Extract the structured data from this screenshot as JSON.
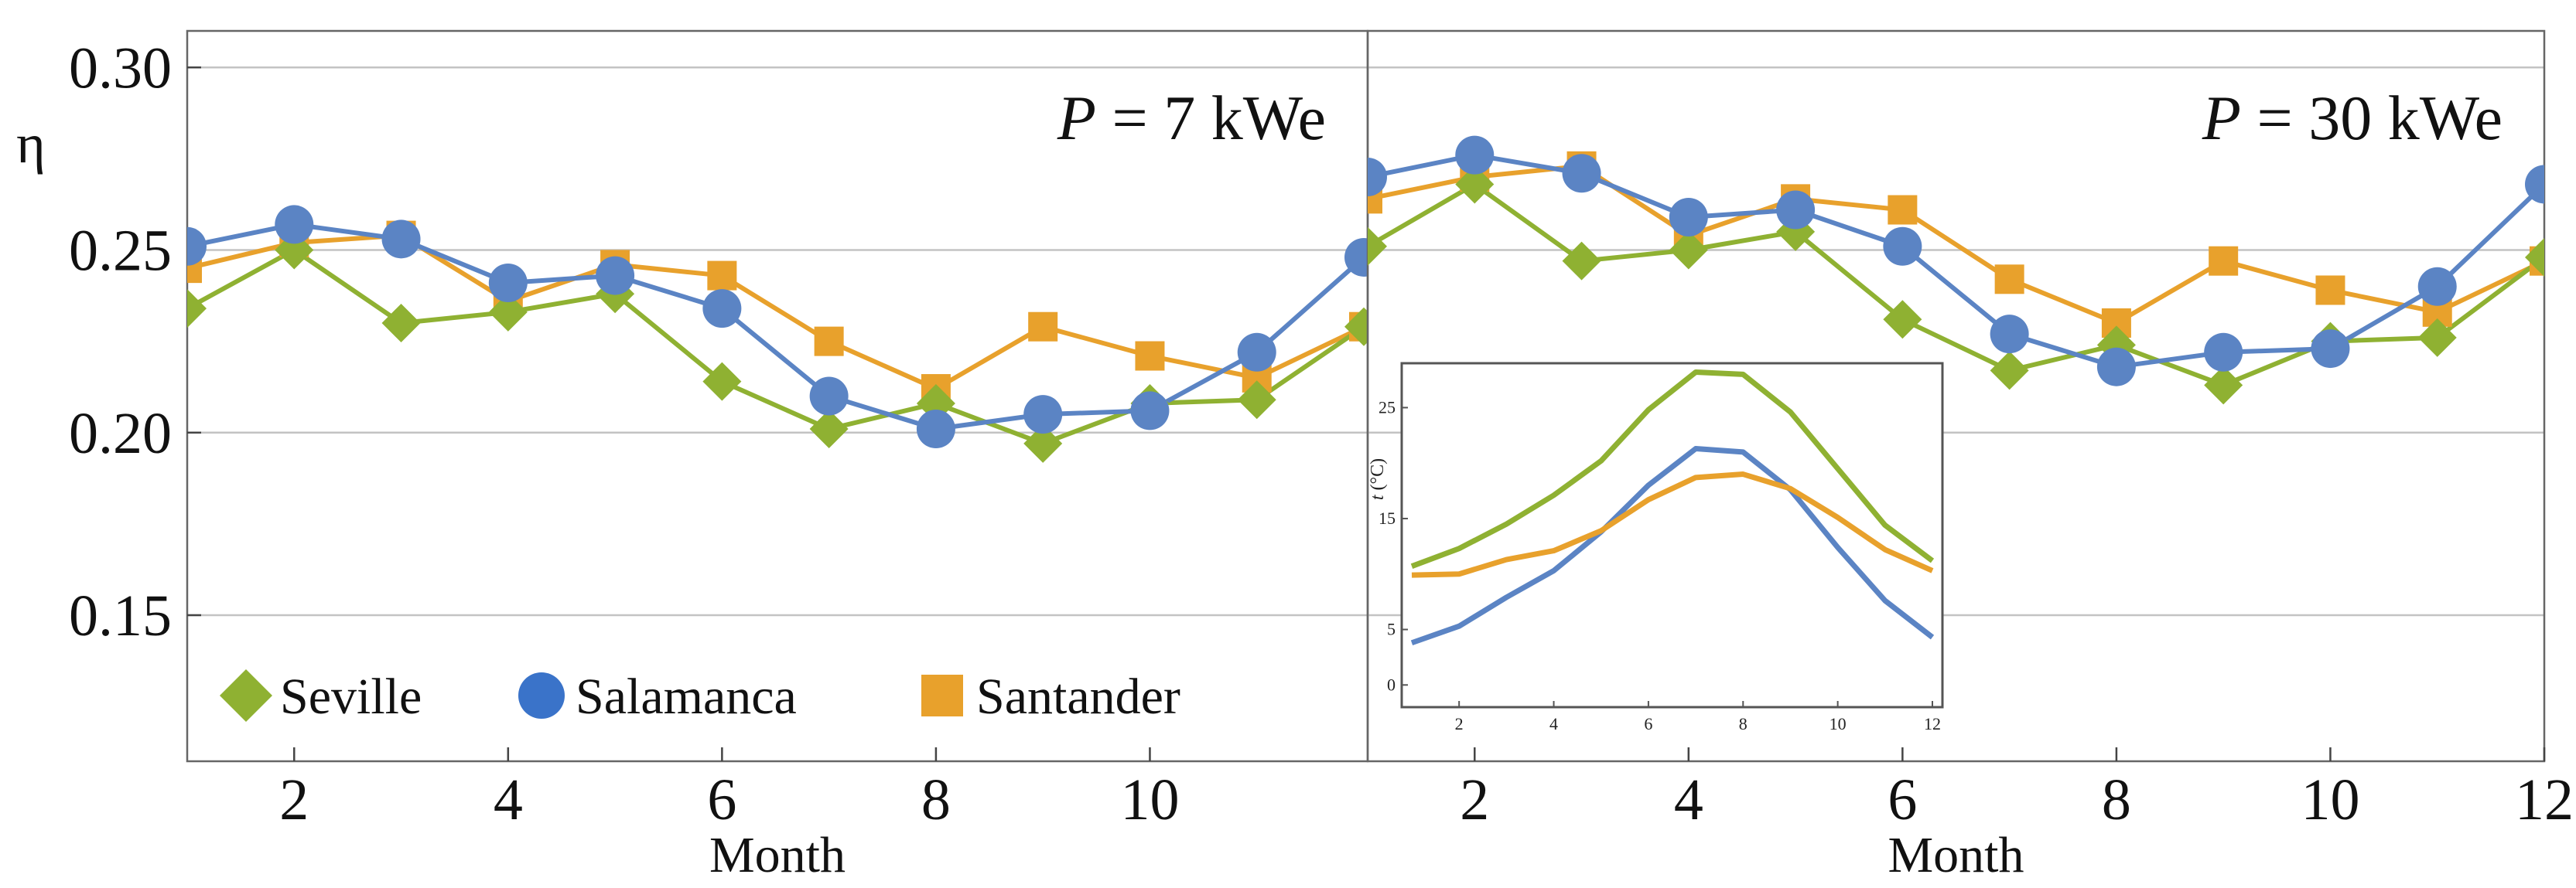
{
  "chart_data": [
    {
      "type": "line",
      "panel": "left",
      "annotation": {
        "italic": "P",
        "text": " = 7 kWe"
      },
      "ylabel": "η",
      "xlabel": "Month",
      "xlim": [
        1,
        12
      ],
      "ylim": [
        0.11,
        0.31
      ],
      "grid": "horizontal",
      "x_ticks": [
        2,
        4,
        6,
        8,
        10
      ],
      "y_ticks": [
        0.15,
        0.2,
        0.25,
        0.3
      ],
      "y_tick_labels": [
        "0.15",
        "0.20",
        "0.25",
        "0.30"
      ],
      "x": [
        1,
        2,
        3,
        4,
        5,
        6,
        7,
        8,
        9,
        10,
        11,
        12
      ],
      "series": [
        {
          "name": "Seville",
          "color": "#8fb132",
          "marker": "diamond",
          "values": [
            0.234,
            0.25,
            0.23,
            0.233,
            0.238,
            0.214,
            0.201,
            0.208,
            0.197,
            0.208,
            0.209,
            0.229
          ]
        },
        {
          "name": "Salamanca",
          "color": "#5b84c4",
          "marker": "circle",
          "values": [
            0.251,
            0.257,
            0.253,
            0.241,
            0.243,
            0.234,
            0.21,
            0.201,
            0.205,
            0.206,
            0.222,
            0.248
          ]
        },
        {
          "name": "Santander",
          "color": "#e8a12c",
          "marker": "square",
          "values": [
            0.245,
            0.252,
            0.254,
            0.236,
            0.246,
            0.243,
            0.225,
            0.212,
            0.229,
            0.221,
            0.215,
            0.229
          ]
        }
      ]
    },
    {
      "type": "line",
      "panel": "right",
      "annotation": {
        "italic": "P",
        "text": " = 30 kWe"
      },
      "xlabel": "Month",
      "xlim": [
        1,
        12
      ],
      "ylim": [
        0.11,
        0.31
      ],
      "grid": "horizontal",
      "x_ticks": [
        2,
        4,
        6,
        8,
        10,
        12
      ],
      "x": [
        1,
        2,
        3,
        4,
        5,
        6,
        7,
        8,
        9,
        10,
        11,
        12
      ],
      "series": [
        {
          "name": "Seville",
          "color": "#8fb132",
          "marker": "diamond",
          "values": [
            0.251,
            0.268,
            0.247,
            0.25,
            0.255,
            0.231,
            0.217,
            0.224,
            0.213,
            0.225,
            0.226,
            0.248
          ]
        },
        {
          "name": "Salamanca",
          "color": "#5b84c4",
          "marker": "circle",
          "values": [
            0.27,
            0.276,
            0.271,
            0.259,
            0.261,
            0.251,
            0.227,
            0.218,
            0.222,
            0.223,
            0.24,
            0.268
          ]
        },
        {
          "name": "Santander",
          "color": "#e8a12c",
          "marker": "square",
          "values": [
            0.264,
            0.27,
            0.273,
            0.254,
            0.264,
            0.261,
            0.242,
            0.23,
            0.247,
            0.239,
            0.233,
            0.247
          ]
        }
      ]
    },
    {
      "type": "line",
      "panel": "inset",
      "ylabel_italic": "t",
      "ylabel": " (°C)",
      "xlim": [
        1,
        12
      ],
      "ylim": [
        -2,
        29
      ],
      "x_ticks": [
        2,
        4,
        6,
        8,
        10,
        12
      ],
      "y_ticks": [
        0,
        5,
        15,
        25
      ],
      "x": [
        1,
        2,
        3,
        4,
        5,
        6,
        7,
        8,
        9,
        10,
        11,
        12
      ],
      "series": [
        {
          "name": "Seville",
          "color": "#8fb132",
          "values": [
            10.7,
            12.3,
            14.5,
            17.1,
            20.2,
            24.8,
            28.2,
            28.0,
            24.6,
            19.5,
            14.4,
            11.2
          ]
        },
        {
          "name": "Salamanca",
          "color": "#5b84c4",
          "values": [
            3.8,
            5.3,
            7.9,
            10.3,
            13.8,
            18.0,
            21.3,
            21.0,
            17.6,
            12.4,
            7.6,
            4.3
          ]
        },
        {
          "name": "Santander",
          "color": "#e8a12c",
          "values": [
            9.9,
            10.0,
            11.3,
            12.1,
            13.9,
            16.7,
            18.7,
            19.0,
            17.7,
            15.1,
            12.2,
            10.3
          ]
        }
      ]
    }
  ],
  "legend": [
    {
      "label": "Seville",
      "marker": "diamond",
      "color": "#8fb132"
    },
    {
      "label": "Salamanca",
      "marker": "circle",
      "color": "#3a73c9"
    },
    {
      "label": "Santander",
      "marker": "square",
      "color": "#e8a12c"
    }
  ]
}
